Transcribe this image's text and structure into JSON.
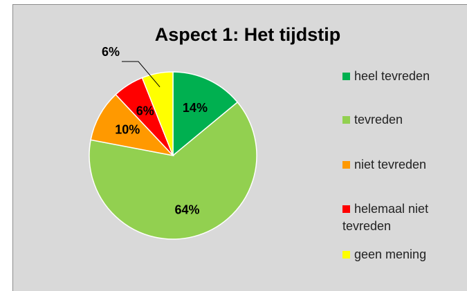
{
  "chart_data": {
    "type": "pie",
    "title": "Aspect 1: Het tijdstip",
    "categories": [
      "heel tevreden",
      "tevreden",
      "niet tevreden",
      "helemaal niet tevreden",
      "geen mening"
    ],
    "values": [
      14,
      64,
      10,
      6,
      6
    ],
    "value_labels": [
      "14%",
      "64%",
      "10%",
      "6%",
      "6%"
    ],
    "colors": [
      "#00b050",
      "#92d050",
      "#ff9900",
      "#ff0000",
      "#ffff00"
    ],
    "legend": "right"
  }
}
